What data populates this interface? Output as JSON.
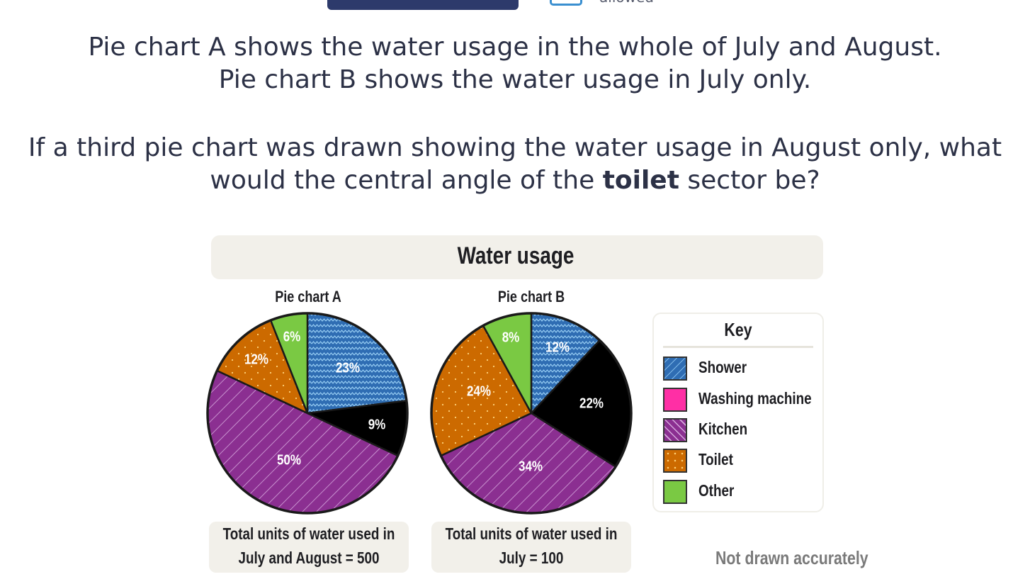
{
  "header": {
    "calculator_text": "allowed"
  },
  "question": {
    "line1": "Pie chart A shows the water usage in the whole of July and August.",
    "line2": "Pie chart B shows the water usage in July only.",
    "line3": "If a third pie chart was drawn showing the water usage in August only, what",
    "line4_before": "would the central angle of the ",
    "line4_bold": "toilet",
    "line4_after": " sector be?"
  },
  "figure": {
    "title": "Water usage",
    "key_title": "Key",
    "note": "Not drawn accurately",
    "total_a_line1": "Total units of water used in",
    "total_a_line2": "July and August = 500",
    "total_b_line1": "Total units of water used in",
    "total_b_line2": "July = 100"
  },
  "colors": {
    "Shower": "#2f6db3",
    "Washing machine": "#ff2fa5",
    "Kitchen": "#8b2f91",
    "Toilet": "#cc6a00",
    "Other": "#7ac943"
  },
  "chart_data": [
    {
      "type": "pie",
      "title": "Pie chart A",
      "categories": [
        "Shower",
        "Washing machine",
        "Kitchen",
        "Toilet",
        "Other"
      ],
      "values": [
        23,
        9,
        50,
        12,
        6
      ],
      "labels": [
        "23%",
        "9%",
        "50%",
        "12%",
        "6%"
      ]
    },
    {
      "type": "pie",
      "title": "Pie chart B",
      "categories": [
        "Shower",
        "Washing machine",
        "Kitchen",
        "Toilet",
        "Other"
      ],
      "values": [
        12,
        22,
        34,
        24,
        8
      ],
      "labels": [
        "12%",
        "22%",
        "34%",
        "24%",
        "8%"
      ]
    }
  ],
  "legend": [
    "Shower",
    "Washing machine",
    "Kitchen",
    "Toilet",
    "Other"
  ]
}
